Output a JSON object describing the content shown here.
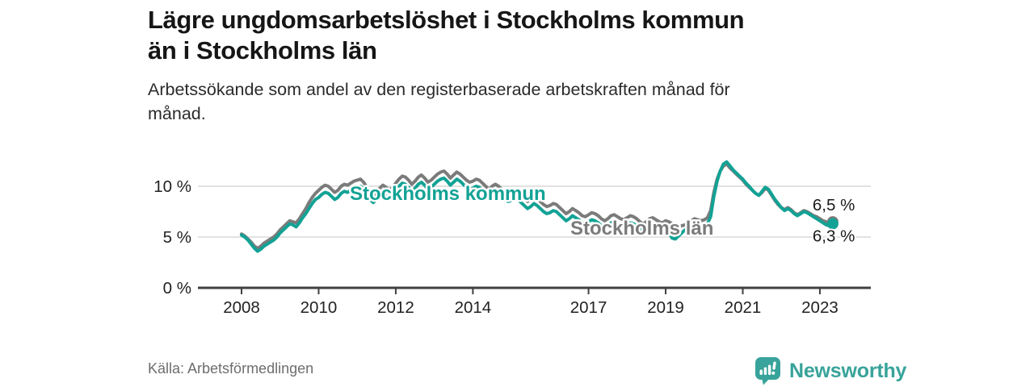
{
  "header": {
    "title_lines": [
      "Lägre ungdomsarbetslöshet i Stockholms kommun",
      "än i Stockholms län"
    ],
    "subtitle_lines": [
      "Arbetssökande som andel av den registerbaserade arbetskraften månad för",
      "månad."
    ]
  },
  "footer": {
    "source": "Källa: Arbetsförmedlingen",
    "brand": "Newsworthy"
  },
  "colors": {
    "kommun": "#12a295",
    "lan": "#7b7b7b",
    "grid": "#d8d8d8",
    "axis": "#404040",
    "tick_text": "#222222",
    "end_label_text": "#1a1a1a",
    "brand": "#38a39a"
  },
  "chart_data": {
    "type": "line",
    "title": "Lägre ungdomsarbetslöshet i Stockholms kommun än i Stockholms län",
    "subtitle": "Arbetssökande som andel av den registerbaserade arbetskraften månad för månad.",
    "x_start": "2008-01",
    "x_end": "2023-05",
    "frequency": "monthly",
    "grid": "horizontal",
    "legend": "inline-labels",
    "ylim": [
      0,
      13
    ],
    "x_ticks": [
      "2008",
      "2010",
      "2012",
      "2014",
      "2017",
      "2019",
      "2021",
      "2023"
    ],
    "y_ticks": [
      {
        "value": 0,
        "label": "0 %"
      },
      {
        "value": 5,
        "label": "5 %"
      },
      {
        "value": 10,
        "label": "10 %"
      }
    ],
    "series": [
      {
        "name": "Stockholms län",
        "color": "#7b7b7b",
        "end_label": "6,5 %",
        "end_value": 6.5,
        "values": [
          5.3,
          5.1,
          4.8,
          4.5,
          4.1,
          3.9,
          4.1,
          4.4,
          4.6,
          4.8,
          5.0,
          5.3,
          5.7,
          6.0,
          6.3,
          6.6,
          6.5,
          6.4,
          6.8,
          7.3,
          7.8,
          8.4,
          8.9,
          9.3,
          9.6,
          9.9,
          10.1,
          10.0,
          9.7,
          9.4,
          9.6,
          10.0,
          10.2,
          10.1,
          10.3,
          10.5,
          10.6,
          10.7,
          10.4,
          9.9,
          9.4,
          9.1,
          9.4,
          9.8,
          10.1,
          9.9,
          9.6,
          9.9,
          10.3,
          10.7,
          11.0,
          10.9,
          10.6,
          10.2,
          10.5,
          10.9,
          11.1,
          10.8,
          10.4,
          10.6,
          10.9,
          11.2,
          11.4,
          11.5,
          11.2,
          10.8,
          11.1,
          11.4,
          11.2,
          10.9,
          10.6,
          10.4,
          10.5,
          10.7,
          10.6,
          10.3,
          10.0,
          9.7,
          10.0,
          10.2,
          10.0,
          9.7,
          9.4,
          9.2,
          9.3,
          9.5,
          9.4,
          9.1,
          8.8,
          8.5,
          8.7,
          9.0,
          8.8,
          8.5,
          8.2,
          8.0,
          8.1,
          8.3,
          8.2,
          7.9,
          7.6,
          7.3,
          7.5,
          7.8,
          7.6,
          7.4,
          7.1,
          7.0,
          7.2,
          7.4,
          7.3,
          7.1,
          6.8,
          6.6,
          6.8,
          7.1,
          7.2,
          7.0,
          6.8,
          6.7,
          6.9,
          7.1,
          7.0,
          6.8,
          6.5,
          6.3,
          6.5,
          6.8,
          6.9,
          6.7,
          6.5,
          6.4,
          6.6,
          6.5,
          6.3,
          6.1,
          6.0,
          6.1,
          6.2,
          6.4,
          6.6,
          6.8,
          6.7,
          6.6,
          6.7,
          6.9,
          7.6,
          9.4,
          10.7,
          11.5,
          12.0,
          12.2,
          11.8,
          11.5,
          11.2,
          10.9,
          10.6,
          10.2,
          9.9,
          9.6,
          9.3,
          9.1,
          9.4,
          9.8,
          9.6,
          9.1,
          8.6,
          8.2,
          7.9,
          7.7,
          7.9,
          7.7,
          7.4,
          7.2,
          7.4,
          7.6,
          7.5,
          7.3,
          7.1,
          7.0,
          6.8,
          6.6,
          6.5,
          6.4,
          6.5
        ]
      },
      {
        "name": "Stockholms kommun",
        "color": "#12a295",
        "end_label": "6,3 %",
        "end_value": 6.3,
        "values": [
          5.2,
          5.0,
          4.7,
          4.3,
          3.9,
          3.6,
          3.8,
          4.1,
          4.3,
          4.5,
          4.7,
          5.0,
          5.4,
          5.7,
          6.0,
          6.3,
          6.2,
          6.0,
          6.4,
          6.9,
          7.3,
          7.8,
          8.3,
          8.7,
          8.9,
          9.2,
          9.4,
          9.3,
          9.0,
          8.7,
          8.9,
          9.3,
          9.5,
          9.4,
          9.6,
          9.8,
          9.9,
          10.0,
          9.7,
          9.2,
          8.7,
          8.4,
          8.7,
          9.1,
          9.4,
          9.2,
          8.9,
          9.2,
          9.6,
          10.0,
          10.3,
          10.2,
          9.9,
          9.5,
          9.8,
          10.2,
          10.4,
          10.1,
          9.7,
          9.9,
          10.2,
          10.5,
          10.7,
          10.8,
          10.5,
          10.1,
          10.4,
          10.7,
          10.5,
          10.2,
          9.9,
          9.7,
          9.8,
          10.0,
          9.9,
          9.6,
          9.3,
          9.0,
          9.3,
          9.5,
          9.3,
          9.0,
          8.7,
          8.5,
          8.6,
          8.8,
          8.7,
          8.4,
          8.1,
          7.8,
          8.0,
          8.3,
          8.1,
          7.8,
          7.5,
          7.3,
          7.4,
          7.6,
          7.5,
          7.2,
          6.9,
          6.6,
          6.8,
          7.1,
          6.9,
          6.7,
          6.4,
          6.3,
          6.5,
          6.7,
          6.6,
          6.4,
          6.1,
          5.9,
          6.1,
          6.4,
          6.5,
          6.3,
          6.1,
          6.0,
          6.2,
          6.4,
          6.3,
          6.1,
          5.8,
          5.6,
          5.8,
          6.1,
          6.2,
          6.0,
          5.8,
          5.7,
          5.8,
          5.4,
          4.9,
          4.8,
          5.1,
          5.4,
          5.7,
          5.9,
          6.1,
          6.2,
          6.1,
          6.0,
          6.1,
          6.3,
          7.0,
          9.0,
          10.5,
          11.5,
          12.2,
          12.4,
          12.0,
          11.6,
          11.3,
          11.0,
          10.7,
          10.3,
          10.0,
          9.6,
          9.3,
          9.1,
          9.5,
          9.9,
          9.7,
          9.2,
          8.7,
          8.3,
          7.9,
          7.6,
          7.8,
          7.6,
          7.3,
          7.1,
          7.3,
          7.5,
          7.4,
          7.2,
          7.0,
          6.8,
          6.6,
          6.4,
          6.2,
          6.1,
          6.3
        ]
      }
    ]
  }
}
